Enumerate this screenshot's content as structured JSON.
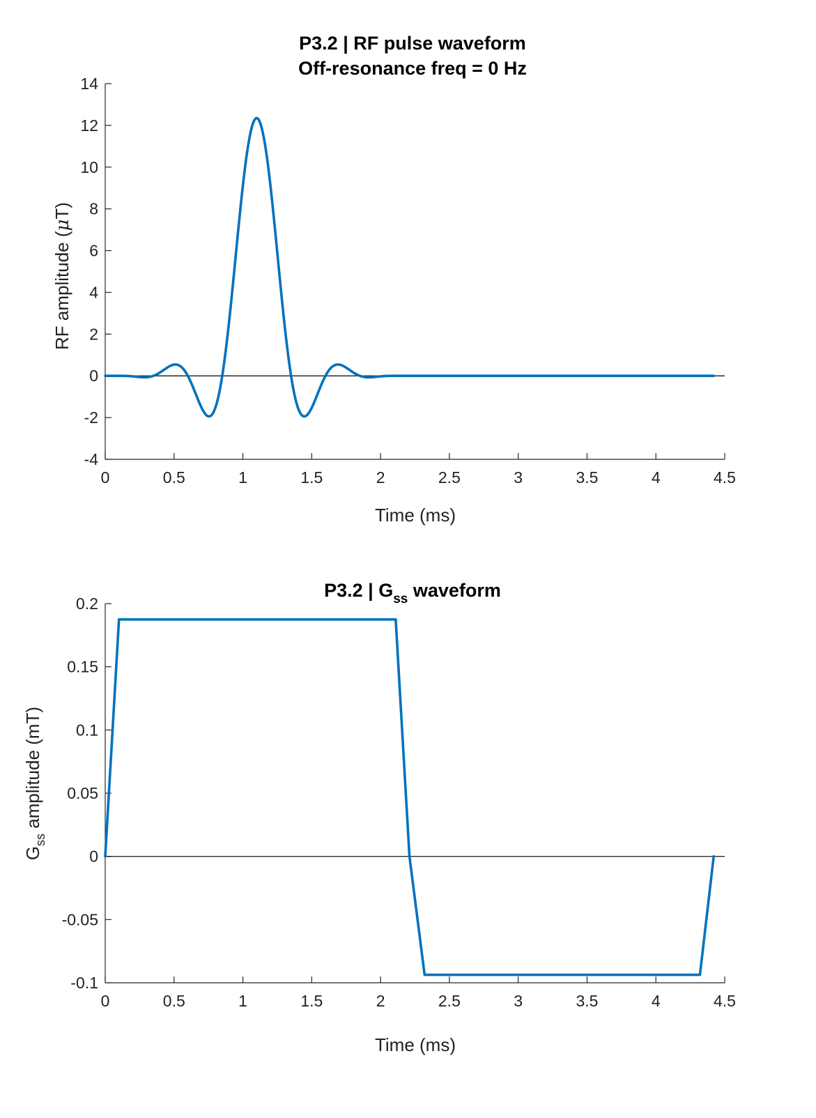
{
  "chart_data": [
    {
      "type": "line",
      "title": "P3.2 | RF pulse waveform",
      "subtitle": "Off-resonance freq = 0 Hz",
      "xlabel": "Time (ms)",
      "ylabel_main": "RF amplitude (",
      "ylabel_symbol": "μ",
      "ylabel_tail": "T)",
      "xlim": [
        0,
        4.5
      ],
      "ylim": [
        -4,
        14
      ],
      "xticks": [
        0,
        0.5,
        1,
        1.5,
        2,
        2.5,
        3,
        3.5,
        4,
        4.5
      ],
      "xtick_labels": [
        "0",
        "0.5",
        "1",
        "1.5",
        "2",
        "2.5",
        "3",
        "3.5",
        "4",
        "4.5"
      ],
      "yticks": [
        -4,
        -2,
        0,
        2,
        4,
        6,
        8,
        10,
        12,
        14
      ],
      "ytick_labels": [
        "-4",
        "-2",
        "0",
        "2",
        "4",
        "6",
        "8",
        "10",
        "12",
        "14"
      ],
      "grid": false,
      "zero_line": true,
      "color": "#0072BD",
      "pulse": {
        "x_start": 0.1,
        "x_end": 2.1,
        "peak": 12.35,
        "center": 1.1,
        "lobe_halfwidth": 0.25,
        "window": "hann"
      },
      "series": [
        {
          "x": [
            0,
            0.1,
            2.1,
            4.42
          ],
          "y": [
            0,
            0,
            0,
            0
          ]
        }
      ]
    },
    {
      "type": "line",
      "title_main": "P3.2 | G",
      "title_sub": "ss",
      "title_tail": " waveform",
      "xlabel": "Time (ms)",
      "ylabel_main": "G",
      "ylabel_sub": "ss",
      "ylabel_tail": " amplitude (mT)",
      "xlim": [
        0,
        4.5
      ],
      "ylim": [
        -0.1,
        0.2
      ],
      "xticks": [
        0,
        0.5,
        1,
        1.5,
        2,
        2.5,
        3,
        3.5,
        4,
        4.5
      ],
      "xtick_labels": [
        "0",
        "0.5",
        "1",
        "1.5",
        "2",
        "2.5",
        "3",
        "3.5",
        "4",
        "4.5"
      ],
      "yticks": [
        -0.1,
        -0.05,
        0,
        0.05,
        0.1,
        0.15,
        0.2
      ],
      "ytick_labels": [
        "-0.1",
        "-0.05",
        "0",
        "0.05",
        "0.1",
        "0.15",
        "0.2"
      ],
      "grid": false,
      "zero_line": true,
      "color": "#0072BD",
      "series": [
        {
          "x": [
            0,
            0.1,
            2.11,
            2.21,
            2.32,
            4.32,
            4.42
          ],
          "y": [
            0,
            0.1875,
            0.1875,
            0,
            -0.0937,
            -0.0937,
            0
          ]
        }
      ]
    }
  ]
}
